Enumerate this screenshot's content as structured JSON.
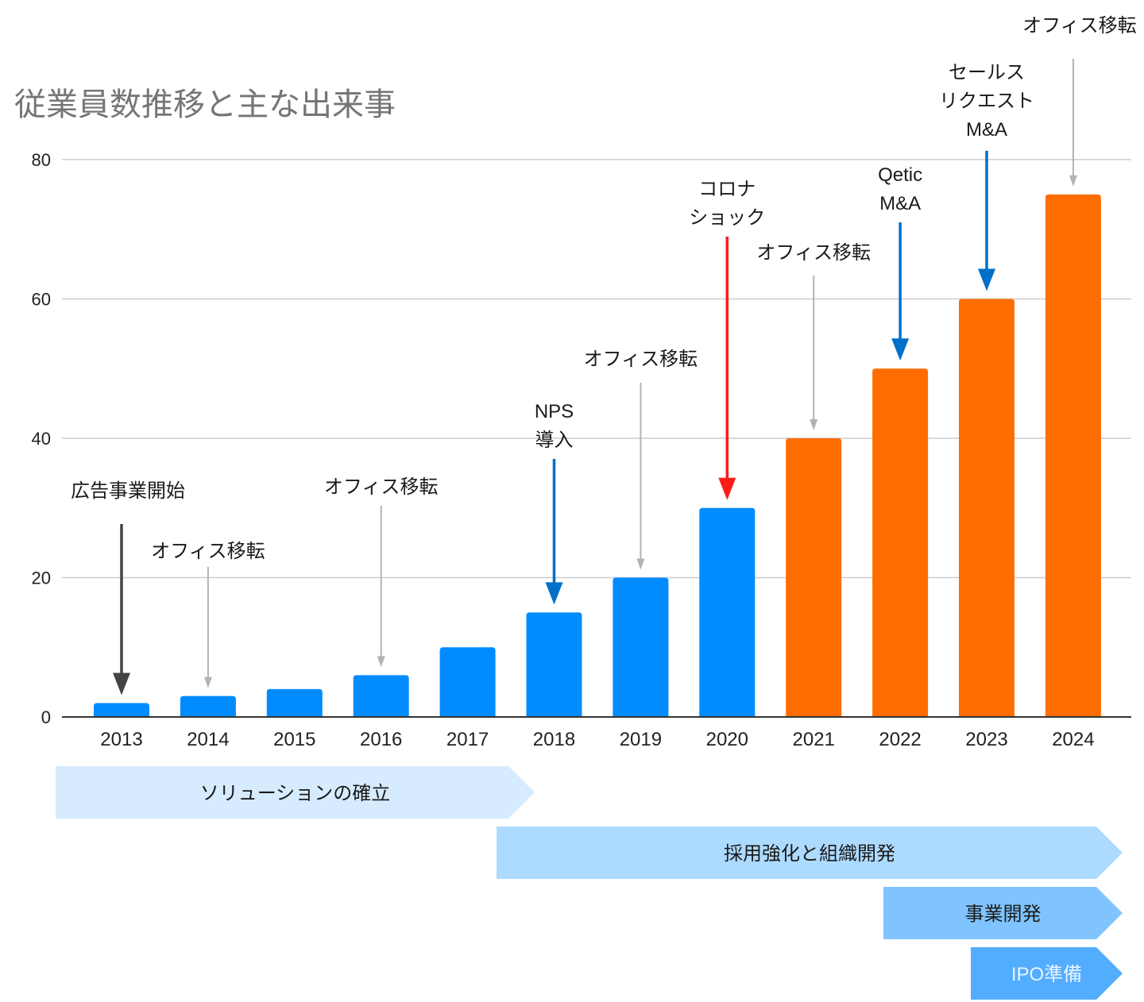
{
  "chart_data": {
    "type": "bar",
    "title": "従業員数推移と主な出来事",
    "xlabel": "",
    "ylabel": "",
    "ylim": [
      0,
      80
    ],
    "yticks": [
      0,
      20,
      40,
      60,
      80
    ],
    "grid": true,
    "categories": [
      "2013",
      "2014",
      "2015",
      "2016",
      "2017",
      "2018",
      "2019",
      "2020",
      "2021",
      "2022",
      "2023",
      "2024"
    ],
    "values": [
      2,
      3,
      4,
      6,
      10,
      15,
      20,
      30,
      40,
      50,
      60,
      75
    ],
    "bar_colors": [
      "#008cff",
      "#008cff",
      "#008cff",
      "#008cff",
      "#008cff",
      "#008cff",
      "#008cff",
      "#008cff",
      "#ff6d00",
      "#ff6d00",
      "#ff6d00",
      "#ff6d00"
    ],
    "annotations": [
      {
        "year": "2013",
        "lines": [
          "広告事業開始"
        ],
        "style": "dark"
      },
      {
        "year": "2014",
        "lines": [
          "オフィス移転"
        ],
        "style": "gray"
      },
      {
        "year": "2016",
        "lines": [
          "オフィス移転"
        ],
        "style": "gray"
      },
      {
        "year": "2018",
        "lines": [
          "NPS",
          "導入"
        ],
        "style": "blue"
      },
      {
        "year": "2019",
        "lines": [
          "オフィス移転"
        ],
        "style": "gray"
      },
      {
        "year": "2020",
        "lines": [
          "コロナ",
          "ショック"
        ],
        "style": "red"
      },
      {
        "year": "2021",
        "lines": [
          "オフィス移転"
        ],
        "style": "gray"
      },
      {
        "year": "2022",
        "lines": [
          "Qetic",
          "M&A"
        ],
        "style": "blue"
      },
      {
        "year": "2023",
        "lines": [
          "セールス",
          "リクエスト",
          "M&A"
        ],
        "style": "blue"
      },
      {
        "year": "2024",
        "lines": [
          "オフィス移転"
        ],
        "style": "gray"
      }
    ],
    "annotation_colors": {
      "dark": "#444444",
      "gray": "#b3b3b3",
      "blue": "#0070c8",
      "red": "#ff1a1a"
    },
    "phases": [
      {
        "label": "ソリューションの確立",
        "from": "2013",
        "to": "2018",
        "color": "#d6ebfd",
        "text_style": "dark"
      },
      {
        "label": "採用強化と組織開発",
        "from": "2018",
        "to": "2024",
        "color": "#addaff",
        "text_style": "dark"
      },
      {
        "label": "事業開発",
        "from": "2022",
        "to": "2024",
        "color": "#7fc4ff",
        "text_style": "dark"
      },
      {
        "label": "IPO準備",
        "from": "2023",
        "to": "2024",
        "color": "#52adff",
        "text_style": "light"
      }
    ]
  }
}
